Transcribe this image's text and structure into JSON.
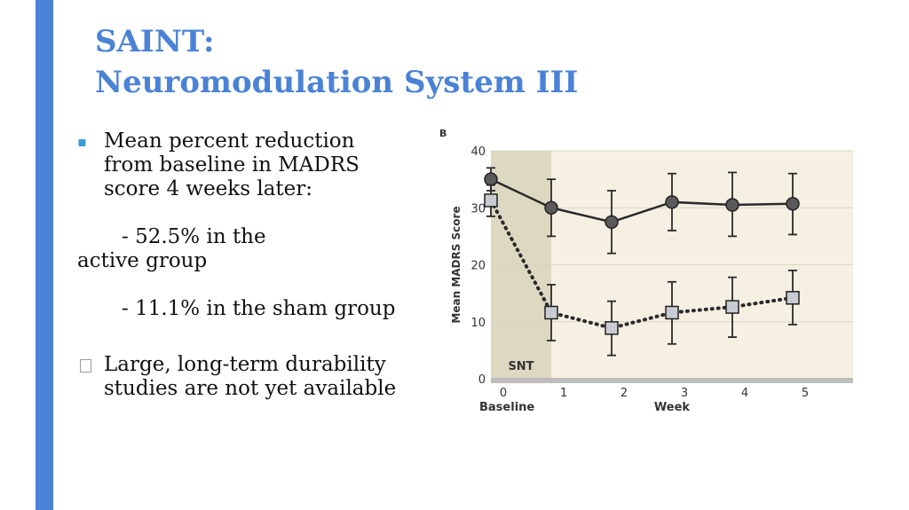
{
  "title": {
    "line1": "SAINT:",
    "line2": "Neuromodulation System III"
  },
  "bullets": {
    "first": {
      "lines": [
        "Mean percent reduction",
        "from baseline in MADRS",
        "score 4 weeks later:"
      ],
      "sub1_line1": "- 52.5% in the",
      "sub1_line2": "active group",
      "sub2": "- 11.1% in the sham  group"
    },
    "second": {
      "lines": [
        "Large, long-term durability",
        "studies are not yet available"
      ]
    }
  },
  "chart_data": {
    "type": "line",
    "panel_label": "B",
    "title": "",
    "xlabel": "Week",
    "x_extra_label": "Baseline",
    "ylabel": "Mean MADRS Score",
    "xlim": [
      0,
      6
    ],
    "ylim": [
      0,
      40
    ],
    "x_ticks": [
      0,
      1,
      2,
      3,
      4,
      5,
      6
    ],
    "y_ticks": [
      0,
      10,
      20,
      30,
      40
    ],
    "shaded_region": {
      "x_start": 0,
      "x_end": 1,
      "label": "SNT"
    },
    "grid": true,
    "series": [
      {
        "x": [
          0,
          1,
          2,
          3,
          4,
          5
        ],
        "values": [
          35,
          30,
          27.5,
          31,
          30.5,
          30.7
        ],
        "err_low": [
          33,
          25,
          22,
          26,
          25,
          25.3
        ],
        "err_high": [
          37,
          35,
          33,
          36,
          36.2,
          36
        ],
        "marker": "circle",
        "line_style": "solid",
        "marker_fill": "#5a5a5a"
      },
      {
        "x": [
          0,
          1,
          2,
          3,
          4,
          5
        ],
        "values": [
          31.3,
          11.6,
          8.9,
          11.6,
          12.6,
          14.2
        ],
        "err_low": [
          28.5,
          6.7,
          4.1,
          6.1,
          7.3,
          9.5
        ],
        "err_high": [
          34,
          16.5,
          13.6,
          17,
          17.8,
          19
        ],
        "marker": "square",
        "line_style": "dotted",
        "marker_fill": "#c8cbd2"
      }
    ],
    "colors": {
      "plot_bg": "#f5f0e2",
      "shade": "#ddd8c0",
      "grid": "#d8d4c6",
      "line": "#2a2a2a",
      "axis_bar": "#bdbdbd"
    }
  }
}
